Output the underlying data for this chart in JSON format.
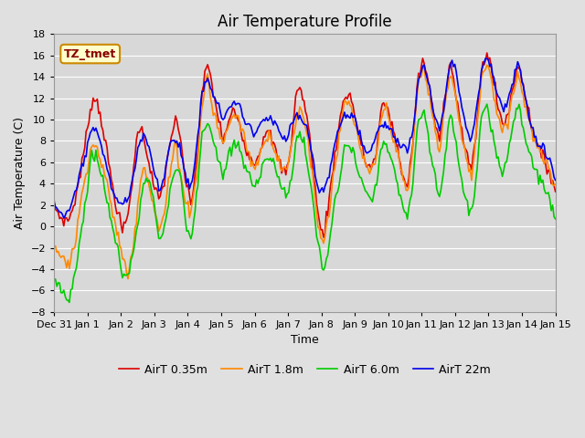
{
  "title": "Air Temperature Profile",
  "xlabel": "Time",
  "ylabel": "Air Temperature (C)",
  "annotation": "TZ_tmet",
  "ylim": [
    -8,
    18
  ],
  "yticks": [
    -8,
    -6,
    -4,
    -2,
    0,
    2,
    4,
    6,
    8,
    10,
    12,
    14,
    16,
    18
  ],
  "xtick_labels": [
    "Dec 31",
    "Jan 1",
    "Jan 2",
    "Jan 3",
    "Jan 4",
    "Jan 5",
    "Jan 6",
    "Jan 7",
    "Jan 8",
    "Jan 9",
    "Jan 10",
    "Jan 11",
    "Jan 12",
    "Jan 13",
    "Jan 14",
    "Jan 15"
  ],
  "legend_labels": [
    "AirT 0.35m",
    "AirT 1.8m",
    "AirT 6.0m",
    "AirT 22m"
  ],
  "line_colors": [
    "#dd0000",
    "#ff8800",
    "#00cc00",
    "#0000ee"
  ],
  "line_width": 1.2,
  "background_color": "#e0e0e0",
  "axes_bg_color": "#d8d8d8",
  "title_fontsize": 12,
  "label_fontsize": 9,
  "tick_fontsize": 8,
  "annotation_bg": "#ffffcc",
  "annotation_border": "#cc8800",
  "annotation_text_color": "#880000",
  "grid_color": "#ffffff",
  "n_points": 360
}
